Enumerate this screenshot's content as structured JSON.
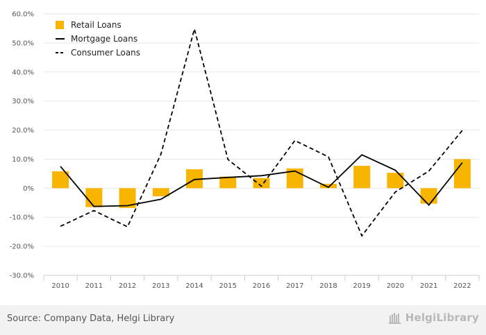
{
  "chart_data": {
    "type": "bar",
    "categories": [
      "2010",
      "2011",
      "2012",
      "2013",
      "2014",
      "2015",
      "2016",
      "2017",
      "2018",
      "2019",
      "2020",
      "2021",
      "2022"
    ],
    "series": [
      {
        "name": "Retail Loans",
        "kind": "bar",
        "color": "#f7b500",
        "values": [
          5.8,
          -6.5,
          -6.8,
          -2.8,
          6.5,
          4.0,
          3.5,
          6.8,
          1.5,
          7.7,
          5.3,
          -5.3,
          10.0
        ]
      },
      {
        "name": "Mortgage Loans",
        "kind": "line",
        "dash": "solid",
        "color": "#000000",
        "values": [
          7.5,
          -6.3,
          -6.0,
          -3.8,
          3.0,
          3.7,
          4.3,
          5.9,
          0.3,
          11.5,
          6.2,
          -5.8,
          8.8
        ]
      },
      {
        "name": "Consumer Loans",
        "kind": "line",
        "dash": "dashed",
        "color": "#000000",
        "values": [
          -13.1,
          -7.7,
          -13.3,
          11.7,
          54.8,
          9.9,
          0.7,
          16.4,
          10.8,
          -16.4,
          -1.3,
          5.9,
          19.9
        ]
      }
    ],
    "y_ticks": [
      "-30.0%",
      "-20.0%",
      "-10.0%",
      "0%",
      "10.0%",
      "20.0%",
      "30.0%",
      "40.0%",
      "50.0%",
      "60.0%"
    ],
    "ylim": [
      -30,
      60
    ],
    "grid": true,
    "legend": "top-left"
  },
  "footer": {
    "source": "Source: Company Data, Helgi Library",
    "brand": "HelgiLibrary"
  }
}
